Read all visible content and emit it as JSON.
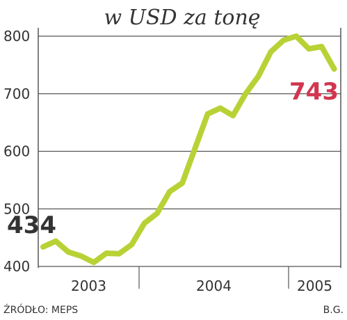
{
  "chart_data": {
    "type": "line",
    "title": "w USD za tonę",
    "values": [
      434,
      444,
      425,
      418,
      407,
      423,
      422,
      438,
      475,
      492,
      530,
      545,
      605,
      665,
      675,
      662,
      700,
      730,
      773,
      793,
      800,
      778,
      782,
      743
    ],
    "color": "#b8d236",
    "x_labels": [
      "2003",
      "2004",
      "2005"
    ],
    "ylim": [
      400,
      800
    ],
    "yticks": [
      400,
      500,
      600,
      700,
      800
    ],
    "grid": true,
    "annotations": [
      {
        "text": "434",
        "color": "#333333"
      },
      {
        "text": "743",
        "color": "#d2354f"
      }
    ],
    "source": "ŹRÓDŁO: MEPS",
    "author": "B.G."
  }
}
